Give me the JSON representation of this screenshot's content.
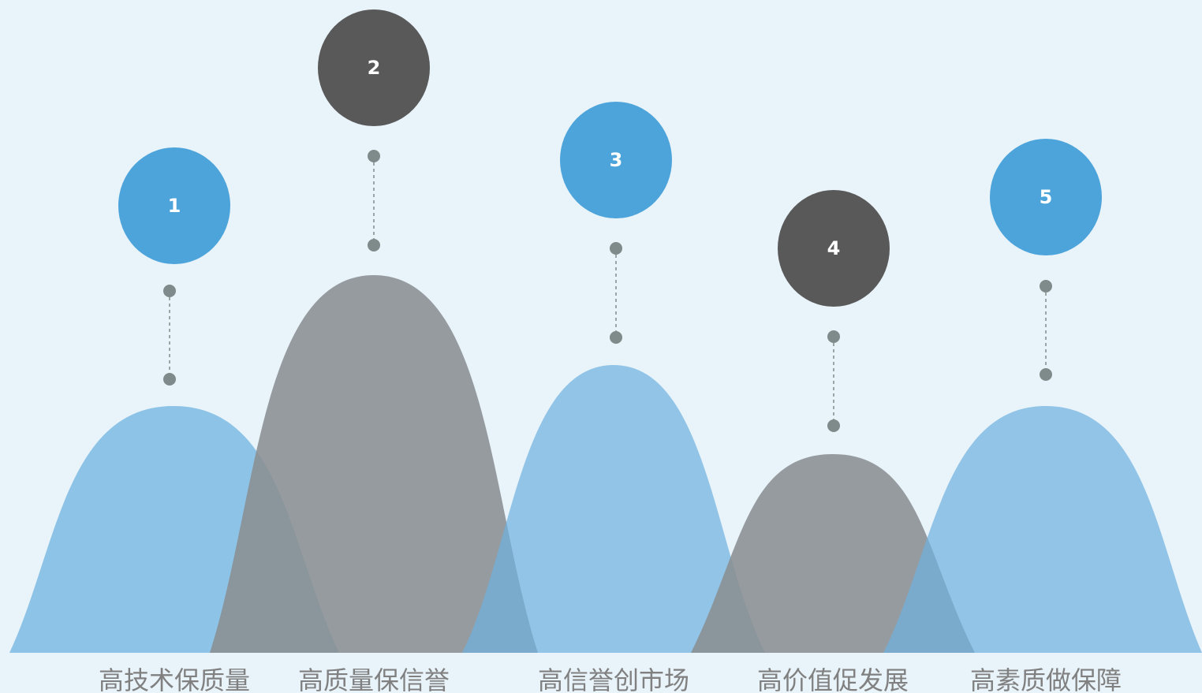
{
  "colors": {
    "background": "#e8f3fa",
    "blue_circle": "#4da4db",
    "dark_circle": "#595959",
    "blue_mound": "#8dc3e6",
    "gray_mound": "#95989b",
    "dot": "#7f8b8b",
    "label_text": "#808080"
  },
  "items": [
    {
      "number": "1",
      "label": "高技术保质量",
      "style": "blue"
    },
    {
      "number": "2",
      "label": "高质量保信誉",
      "style": "dark"
    },
    {
      "number": "3",
      "label": "高信誉创市场",
      "style": "blue"
    },
    {
      "number": "4",
      "label": "高价值促发展",
      "style": "dark"
    },
    {
      "number": "5",
      "label": "高素质做保障",
      "style": "blue"
    }
  ]
}
